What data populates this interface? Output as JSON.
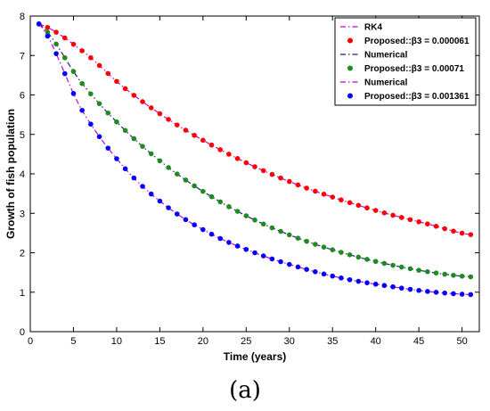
{
  "chart_data": {
    "type": "line",
    "xlabel": "Time (years)",
    "ylabel": "Growth of fish population",
    "xlim": [
      0,
      52
    ],
    "ylim": [
      0,
      8
    ],
    "xticks": [
      "0",
      "5",
      "10",
      "15",
      "20",
      "25",
      "30",
      "35",
      "40",
      "45",
      "50"
    ],
    "yticks": [
      "0",
      "1",
      "2",
      "3",
      "4",
      "5",
      "6",
      "7",
      "8"
    ],
    "grid": false,
    "legend_position": "top-right",
    "colors": {
      "red": "#ff0000",
      "green": "#1f8a1f",
      "blue": "#0000ff",
      "magenta": "#cc00cc",
      "navy": "#1a237e",
      "dark": "#222222"
    },
    "series": [
      {
        "name": "RK4",
        "marker": "line",
        "x": [
          1,
          6,
          11,
          16,
          21,
          26,
          31,
          36,
          41,
          46,
          51
        ],
        "y": [
          7.8,
          7.12,
          6.16,
          5.38,
          4.73,
          4.18,
          3.72,
          3.34,
          3.01,
          2.73,
          2.46
        ]
      },
      {
        "name": "Proposed::β3 = 0.000061",
        "marker": "dot",
        "x": [
          1,
          6,
          11,
          16,
          21,
          26,
          31,
          36,
          41,
          46,
          51
        ],
        "y": [
          7.8,
          7.12,
          6.16,
          5.38,
          4.73,
          4.18,
          3.72,
          3.34,
          3.01,
          2.73,
          2.46
        ]
      },
      {
        "name": "Numerical",
        "marker": "line",
        "x": [
          1,
          6,
          11,
          16,
          21,
          26,
          31,
          36,
          41,
          46,
          51
        ],
        "y": [
          7.8,
          6.29,
          5.1,
          4.16,
          3.42,
          2.83,
          2.37,
          2.01,
          1.73,
          1.52,
          1.39
        ]
      },
      {
        "name": "Proposed::β3 = 0.00071",
        "marker": "dot",
        "x": [
          1,
          6,
          11,
          16,
          21,
          26,
          31,
          36,
          41,
          46,
          51
        ],
        "y": [
          7.8,
          6.29,
          5.1,
          4.16,
          3.42,
          2.83,
          2.37,
          2.01,
          1.73,
          1.52,
          1.39
        ]
      },
      {
        "name": "Numerical",
        "marker": "line",
        "x": [
          1,
          6,
          11,
          16,
          21,
          26,
          31,
          36,
          41,
          46,
          51
        ],
        "y": [
          7.8,
          5.61,
          4.13,
          3.14,
          2.47,
          2.0,
          1.64,
          1.36,
          1.17,
          1.02,
          0.94
        ]
      },
      {
        "name": "Proposed::β3 = 0.001361",
        "marker": "dot",
        "x": [
          1,
          6,
          11,
          16,
          21,
          26,
          31,
          36,
          41,
          46,
          51
        ],
        "y": [
          7.8,
          5.61,
          4.13,
          3.14,
          2.47,
          2.0,
          1.64,
          1.36,
          1.17,
          1.02,
          0.94
        ]
      }
    ]
  },
  "legend": [
    {
      "kind": "line",
      "color": "#cc00cc",
      "label": "RK4"
    },
    {
      "kind": "dot",
      "color": "#ff0000",
      "label": "Proposed::β3 = 0.000061"
    },
    {
      "kind": "line",
      "color": "#1a237e",
      "label": "Numerical"
    },
    {
      "kind": "dot",
      "color": "#1f8a1f",
      "label": "Proposed::β3 = 0.00071"
    },
    {
      "kind": "line",
      "color": "#cc00cc",
      "label": "Numerical"
    },
    {
      "kind": "dot",
      "color": "#0000ff",
      "label": "Proposed::β3 = 0.001361"
    }
  ],
  "caption": "(a)"
}
